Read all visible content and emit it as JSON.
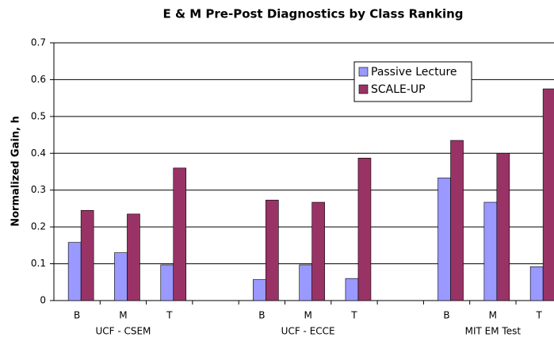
{
  "chart_data": {
    "type": "bar",
    "title": "E & M Pre-Post Diagnostics by Class Ranking",
    "y_label": "Normalized Gain, h",
    "categories": [
      "B",
      "M",
      "T",
      null,
      "B",
      "M",
      "T",
      null,
      "B",
      "M",
      "T"
    ],
    "groups": [
      "UCF - CSEM",
      "UCF - ECCE",
      "MIT EM Test"
    ],
    "series": [
      {
        "name": "Passive Lecture",
        "color": "#9999ff",
        "values": [
          0.158,
          0.13,
          0.097,
          null,
          0.057,
          0.097,
          0.06,
          null,
          0.333,
          0.267,
          0.092
        ]
      },
      {
        "name": "SCALE-UP",
        "color": "#993366",
        "values": [
          0.245,
          0.235,
          0.36,
          null,
          0.273,
          0.267,
          0.387,
          null,
          0.435,
          0.4,
          0.575
        ]
      }
    ],
    "ylim": [
      0,
      0.7
    ],
    "yticks": [
      0,
      0.1,
      0.2,
      0.3,
      0.4,
      0.5,
      0.6,
      0.7
    ],
    "grid": true,
    "legend": "upper right"
  }
}
